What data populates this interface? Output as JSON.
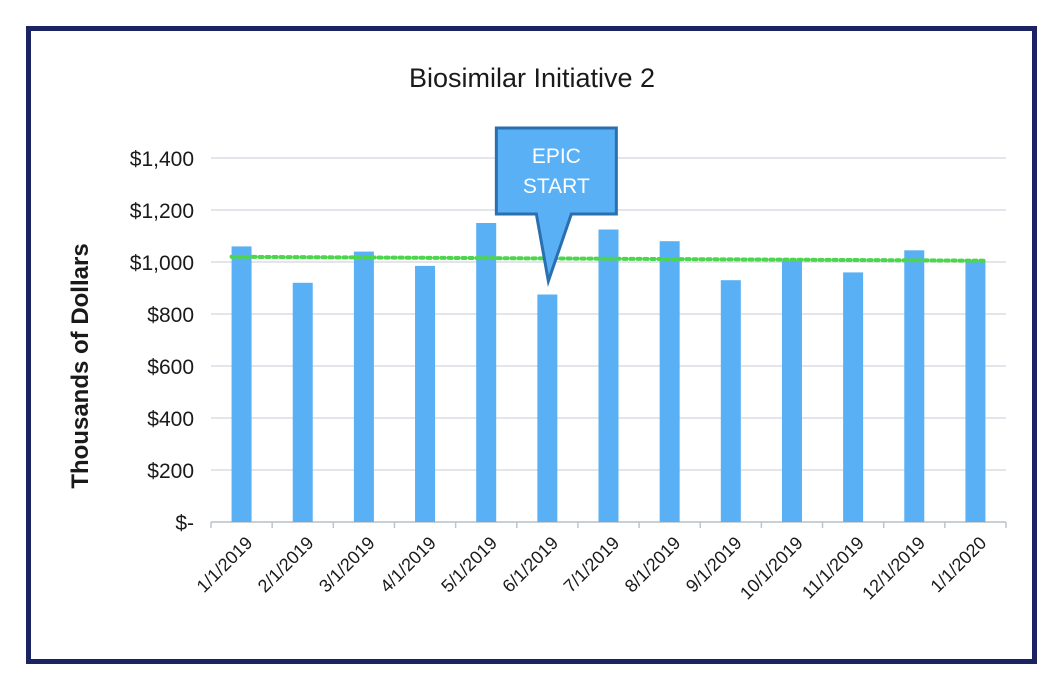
{
  "chart_data": {
    "type": "bar",
    "title": "Biosimilar Initiative 2",
    "xlabel": "",
    "ylabel": "Thousands of Dollars",
    "categories": [
      "1/1/2019",
      "2/1/2019",
      "3/1/2019",
      "4/1/2019",
      "5/1/2019",
      "6/1/2019",
      "7/1/2019",
      "8/1/2019",
      "9/1/2019",
      "10/1/2019",
      "11/1/2019",
      "12/1/2019",
      "1/1/2020"
    ],
    "values": [
      1060,
      920,
      1040,
      985,
      1150,
      875,
      1125,
      1080,
      930,
      1005,
      960,
      1045,
      1005
    ],
    "ylim": [
      0,
      1400
    ],
    "yticks": [
      0,
      200,
      400,
      600,
      800,
      1000,
      1200,
      1400
    ],
    "ytick_labels": [
      "$-",
      "$200",
      "$400",
      "$600",
      "$800",
      "$1,000",
      "$1,200",
      "$1,400"
    ],
    "trendline": {
      "style": "dotted",
      "start": 1020,
      "end": 1005
    },
    "grid": true,
    "annotation": {
      "lines": [
        "EPIC",
        "START"
      ],
      "category": "6/1/2019"
    },
    "colors": {
      "bar": "#5ab0f4",
      "trendline": "#4cd64c",
      "callout_fill": "#5ab0f4",
      "callout_border": "#2a6fb0",
      "grid": "#d9dde3",
      "frame": "#1c2363"
    }
  }
}
